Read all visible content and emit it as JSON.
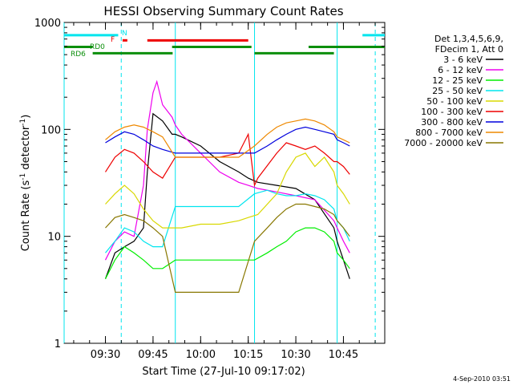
{
  "chart_data": {
    "type": "line",
    "title": "HESSI Observing Summary Count Rates",
    "xlabel": "Start Time (27-Jul-10 09:17:02)",
    "ylabel_main": "Count Rate (s",
    "ylabel_sup1": "-1",
    "ylabel_mid": " detector",
    "ylabel_sup2": "-1",
    "ylabel_end": ")",
    "yscale": "log",
    "ylim": [
      1,
      1000
    ],
    "xlim_min": [
      9.283,
      10.967
    ],
    "y_ticks": [
      "1",
      "10",
      "100",
      "1000"
    ],
    "x_ticks": [
      {
        "label": "09:30",
        "min": 9.5
      },
      {
        "label": "09:45",
        "min": 9.75
      },
      {
        "label": "10:00",
        "min": 10.0
      },
      {
        "label": "10:15",
        "min": 10.25
      },
      {
        "label": "10:30",
        "min": 10.5
      },
      {
        "label": "10:45",
        "min": 10.75
      }
    ],
    "legend_header": [
      "Det 1,3,4,5,6,9,",
      "FDecim 1, Att 0"
    ],
    "legend_position": "right",
    "timestamp": "4-Sep-2010 03:51",
    "flags": [
      {
        "name": "N",
        "color": "#00e5ee",
        "segments": [
          [
            9.283,
            9.567
          ],
          [
            10.85,
            10.967
          ]
        ],
        "level": 760
      },
      {
        "name": "F",
        "color": "#ee0000",
        "segments": [
          [
            9.59,
            9.615
          ],
          [
            9.72,
            10.25
          ]
        ],
        "level": 680
      },
      {
        "name": "RD0",
        "color": "#0c8f0c",
        "segments": [
          [
            9.283,
            9.433
          ],
          [
            9.85,
            10.267
          ],
          [
            10.567,
            10.967
          ]
        ],
        "level": 590
      },
      {
        "name": "RD6",
        "color": "#0c8f0c",
        "segments": [
          [
            9.433,
            9.853
          ],
          [
            10.283,
            10.7
          ]
        ],
        "level": 515
      }
    ],
    "flag_labels": [
      {
        "text": "N",
        "color": "#00e5ee"
      },
      {
        "text": "F",
        "color": "#ee0000"
      },
      {
        "text": "RD0",
        "color": "#0c8f0c"
      },
      {
        "text": "RD6",
        "color": "#0c8f0c"
      }
    ],
    "vlines_solid": [
      9.283,
      9.867,
      10.283,
      10.717
    ],
    "vlines_dashed": [
      9.583,
      10.917
    ],
    "series": [
      {
        "name": "3 - 6 keV",
        "color": "#000000",
        "x": [
          9.5,
          9.55,
          9.6,
          9.65,
          9.7,
          9.72,
          9.75,
          9.8,
          9.85,
          9.867,
          9.9,
          10.0,
          10.1,
          10.2,
          10.25,
          10.3,
          10.4,
          10.5,
          10.6,
          10.7,
          10.717,
          10.75,
          10.783
        ],
        "y": [
          4,
          7,
          8,
          9,
          12,
          40,
          140,
          120,
          90,
          90,
          85,
          70,
          50,
          40,
          35,
          32,
          30,
          28,
          22,
          12,
          9,
          6,
          4
        ]
      },
      {
        "name": "6 - 12 keV",
        "color": "#ee00ee",
        "x": [
          9.5,
          9.55,
          9.6,
          9.65,
          9.7,
          9.72,
          9.75,
          9.77,
          9.8,
          9.85,
          9.867,
          9.9,
          10.0,
          10.1,
          10.2,
          10.25,
          10.3,
          10.4,
          10.5,
          10.6,
          10.7,
          10.717,
          10.75,
          10.783
        ],
        "y": [
          6,
          9,
          11,
          10,
          30,
          100,
          220,
          280,
          170,
          130,
          110,
          90,
          60,
          40,
          32,
          30,
          28,
          26,
          24,
          22,
          14,
          12,
          9,
          7
        ]
      },
      {
        "name": "12 - 25 keV",
        "color": "#00ee00",
        "x": [
          9.5,
          9.55,
          9.6,
          9.65,
          9.7,
          9.75,
          9.8,
          9.867,
          9.9,
          10.0,
          10.1,
          10.2,
          10.283,
          10.35,
          10.4,
          10.45,
          10.5,
          10.55,
          10.6,
          10.65,
          10.7,
          10.717,
          10.75,
          10.783
        ],
        "y": [
          4,
          6,
          8,
          7,
          6,
          5,
          5,
          6,
          6,
          6,
          6,
          6,
          6,
          7,
          8,
          9,
          11,
          12,
          12,
          11,
          9,
          7,
          6,
          5
        ]
      },
      {
        "name": "25 - 50 keV",
        "color": "#00e5ee",
        "x": [
          9.5,
          9.55,
          9.6,
          9.65,
          9.7,
          9.75,
          9.8,
          9.867,
          9.9,
          10.0,
          10.1,
          10.2,
          10.283,
          10.35,
          10.4,
          10.45,
          10.5,
          10.55,
          10.6,
          10.65,
          10.7,
          10.717,
          10.75,
          10.783
        ],
        "y": [
          7,
          9,
          12,
          11,
          9,
          8,
          8,
          19,
          19,
          19,
          19,
          19,
          25,
          27,
          25,
          24,
          24,
          25,
          24,
          22,
          18,
          14,
          12,
          9
        ]
      },
      {
        "name": "50 - 100 keV",
        "color": "#d8d800",
        "x": [
          9.5,
          9.55,
          9.6,
          9.65,
          9.7,
          9.75,
          9.8,
          9.867,
          9.9,
          10.0,
          10.1,
          10.2,
          10.25,
          10.3,
          10.4,
          10.45,
          10.5,
          10.55,
          10.6,
          10.65,
          10.7,
          10.717,
          10.75,
          10.783
        ],
        "y": [
          20,
          25,
          30,
          25,
          18,
          14,
          12,
          12,
          12,
          13,
          13,
          14,
          15,
          16,
          25,
          40,
          55,
          60,
          45,
          55,
          40,
          30,
          25,
          20
        ]
      },
      {
        "name": "100 - 300 keV",
        "color": "#ee0000",
        "x": [
          9.5,
          9.55,
          9.6,
          9.65,
          9.7,
          9.75,
          9.8,
          9.867,
          9.9,
          10.0,
          10.1,
          10.2,
          10.25,
          10.283,
          10.3,
          10.4,
          10.45,
          10.5,
          10.55,
          10.6,
          10.65,
          10.7,
          10.717,
          10.75,
          10.783
        ],
        "y": [
          40,
          55,
          65,
          60,
          50,
          40,
          35,
          55,
          55,
          55,
          55,
          60,
          90,
          30,
          35,
          60,
          75,
          70,
          65,
          70,
          60,
          50,
          50,
          45,
          38
        ]
      },
      {
        "name": "300 - 800 keV",
        "color": "#0000dd",
        "x": [
          9.5,
          9.55,
          9.6,
          9.65,
          9.7,
          9.75,
          9.8,
          9.867,
          9.9,
          10.0,
          10.1,
          10.2,
          10.283,
          10.35,
          10.4,
          10.45,
          10.5,
          10.55,
          10.6,
          10.65,
          10.7,
          10.717,
          10.75,
          10.783
        ],
        "y": [
          75,
          85,
          95,
          90,
          80,
          70,
          65,
          60,
          60,
          60,
          60,
          60,
          60,
          70,
          80,
          90,
          100,
          105,
          100,
          95,
          90,
          80,
          75,
          70
        ]
      },
      {
        "name": "800 - 7000 keV",
        "color": "#ee8800",
        "x": [
          9.5,
          9.55,
          9.6,
          9.65,
          9.7,
          9.75,
          9.8,
          9.867,
          9.9,
          10.0,
          10.1,
          10.2,
          10.283,
          10.35,
          10.4,
          10.45,
          10.5,
          10.55,
          10.6,
          10.65,
          10.7,
          10.717,
          10.75,
          10.783
        ],
        "y": [
          80,
          95,
          105,
          110,
          105,
          95,
          85,
          55,
          55,
          55,
          55,
          55,
          70,
          90,
          105,
          115,
          120,
          125,
          120,
          110,
          95,
          85,
          80,
          75
        ]
      },
      {
        "name": "7000 - 20000 keV",
        "color": "#887700",
        "x": [
          9.5,
          9.55,
          9.6,
          9.65,
          9.7,
          9.75,
          9.8,
          9.867,
          9.9,
          10.0,
          10.1,
          10.2,
          10.283,
          10.35,
          10.4,
          10.45,
          10.5,
          10.55,
          10.6,
          10.65,
          10.7,
          10.717,
          10.75,
          10.783
        ],
        "y": [
          12,
          15,
          16,
          15,
          14,
          12,
          10,
          3,
          3,
          3,
          3,
          3,
          9,
          12,
          15,
          18,
          20,
          20,
          19,
          18,
          16,
          14,
          12,
          10
        ]
      }
    ]
  }
}
